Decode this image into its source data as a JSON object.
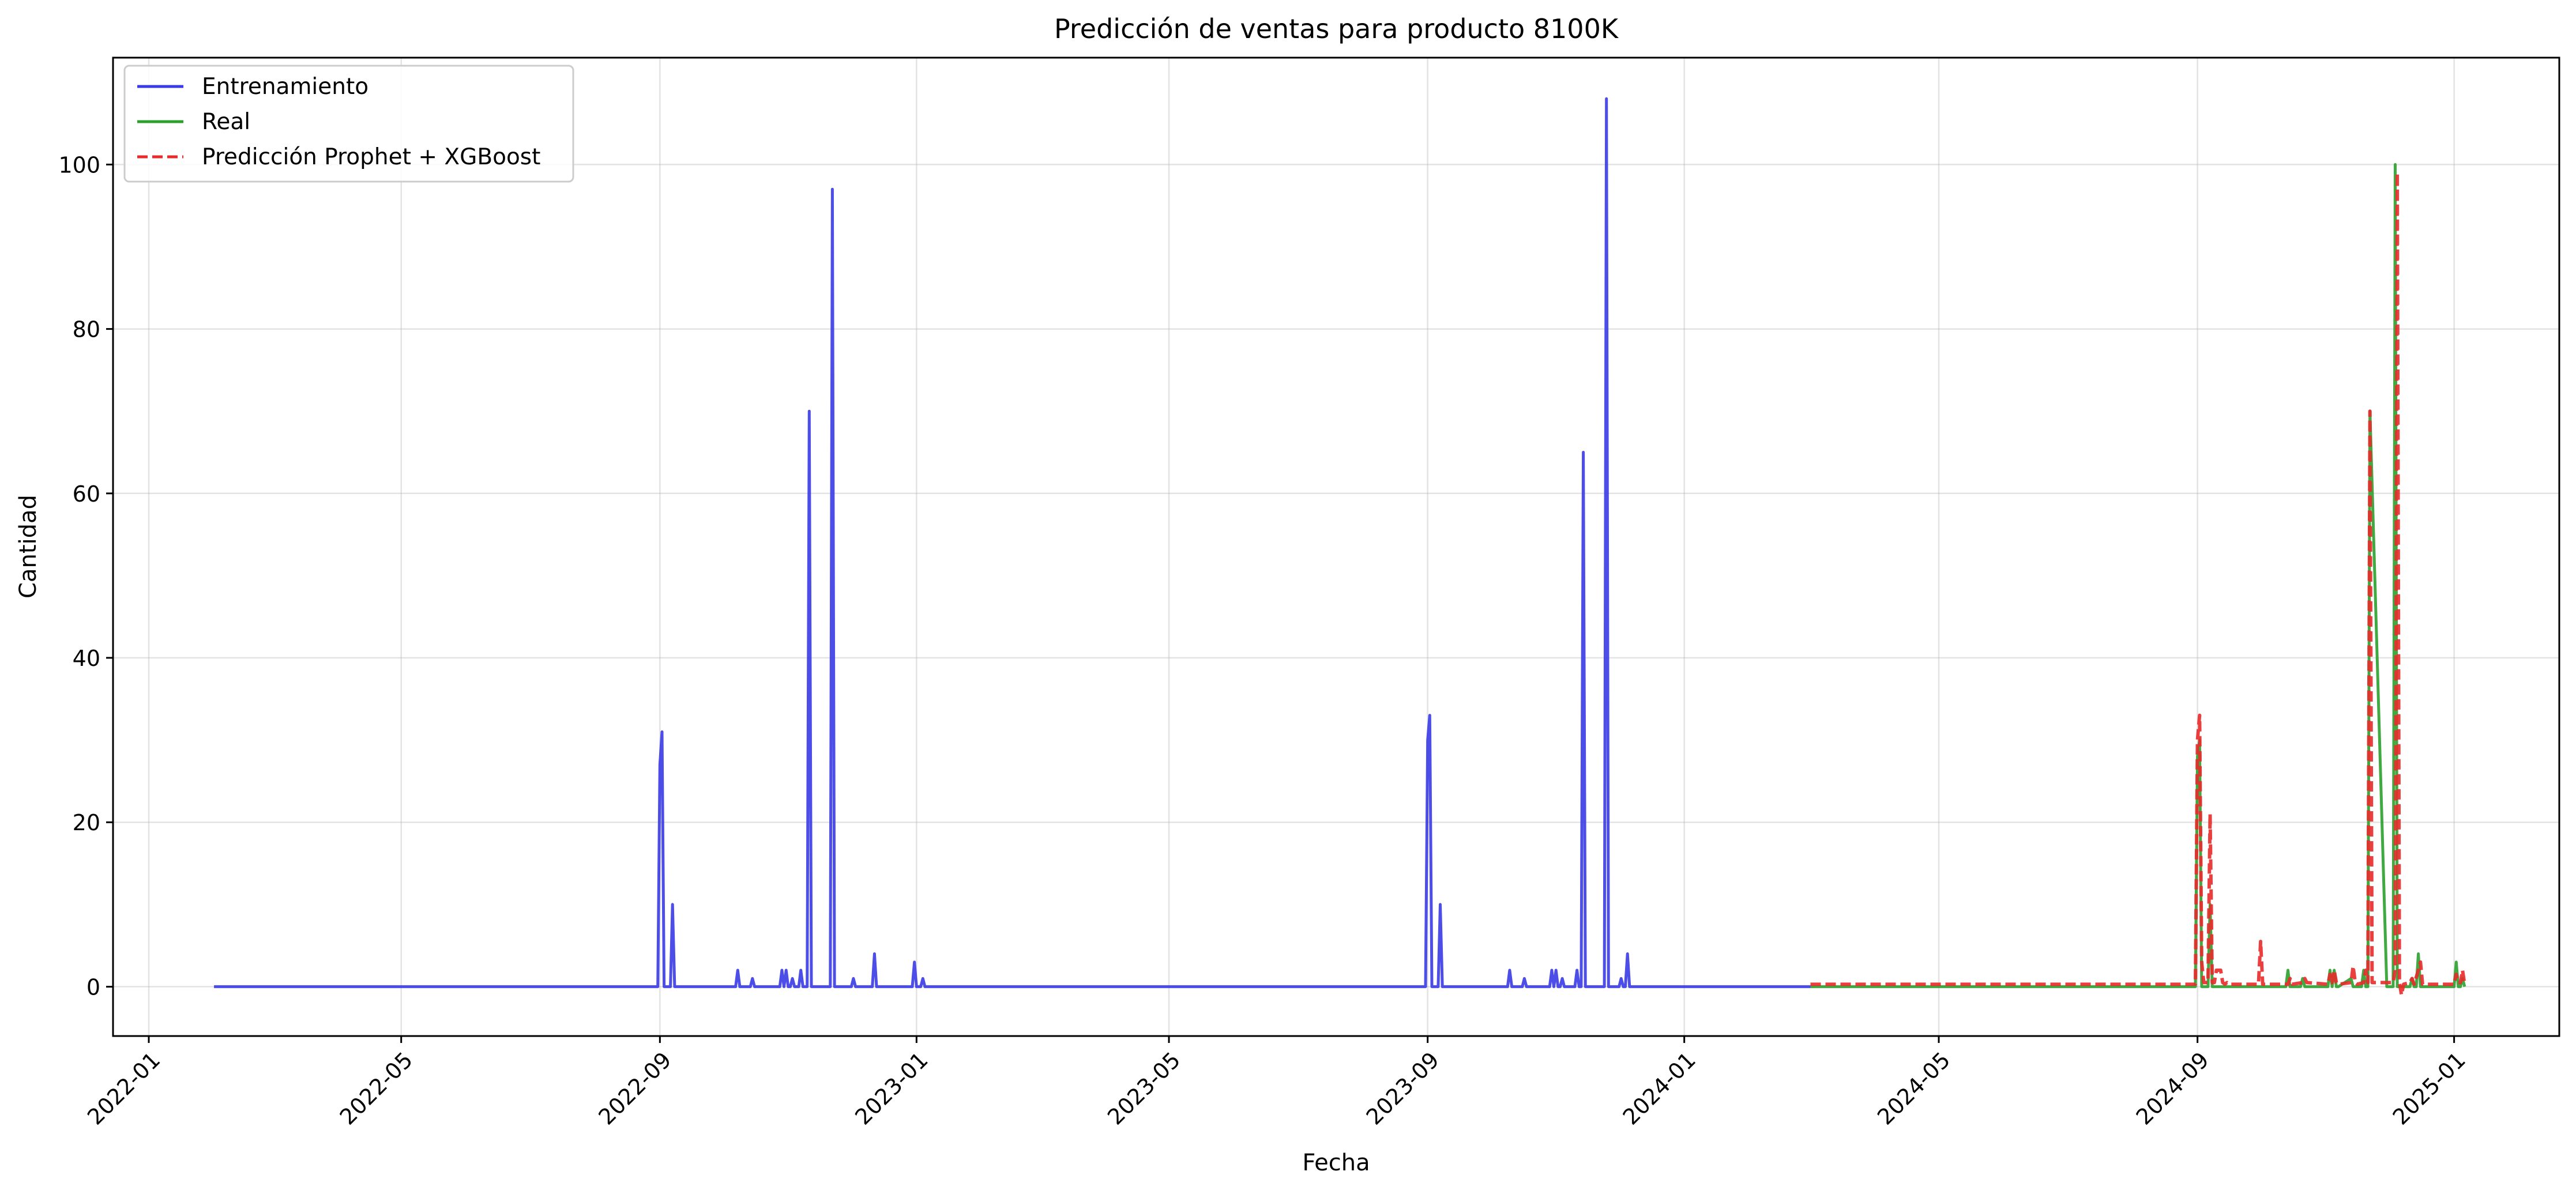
{
  "chart_data": {
    "type": "line",
    "title": "Predicción de ventas para producto 8100K",
    "xlabel": "Fecha",
    "ylabel": "Cantidad",
    "xlim": [
      "2021-12-15",
      "2025-02-20"
    ],
    "ylim": [
      -6,
      113
    ],
    "x_ticks": [
      "2022-01",
      "2022-05",
      "2022-09",
      "2023-01",
      "2023-05",
      "2023-09",
      "2024-01",
      "2024-05",
      "2024-09",
      "2025-01"
    ],
    "y_ticks": [
      0,
      20,
      40,
      60,
      80,
      100
    ],
    "grid": true,
    "legend_position": "top-left",
    "series": [
      {
        "name": "Entrenamiento",
        "color": "#3a3ae6",
        "dash": "solid",
        "x": [
          "2022-02-01",
          "2022-08-31",
          "2022-09-01",
          "2022-09-02",
          "2022-09-03",
          "2022-09-05",
          "2022-09-06",
          "2022-09-07",
          "2022-09-08",
          "2022-09-09",
          "2022-09-10",
          "2022-09-11",
          "2022-10-07",
          "2022-10-08",
          "2022-10-09",
          "2022-10-14",
          "2022-10-15",
          "2022-10-16",
          "2022-10-28",
          "2022-10-29",
          "2022-10-30",
          "2022-10-31",
          "2022-11-01",
          "2022-11-02",
          "2022-11-03",
          "2022-11-04",
          "2022-11-06",
          "2022-11-07",
          "2022-11-08",
          "2022-11-09",
          "2022-11-10",
          "2022-11-11",
          "2022-11-12",
          "2022-11-20",
          "2022-11-21",
          "2022-11-22",
          "2022-11-23",
          "2022-12-01",
          "2022-12-02",
          "2022-12-03",
          "2022-12-11",
          "2022-12-12",
          "2022-12-13",
          "2022-12-30",
          "2022-12-31",
          "2023-01-01",
          "2023-01-03",
          "2023-01-04",
          "2023-01-05",
          "2023-08-31",
          "2023-09-01",
          "2023-09-02",
          "2023-09-03",
          "2023-09-05",
          "2023-09-06",
          "2023-09-07",
          "2023-09-08",
          "2023-09-09",
          "2023-09-10",
          "2023-09-11",
          "2023-10-09",
          "2023-10-10",
          "2023-10-11",
          "2023-10-16",
          "2023-10-17",
          "2023-10-18",
          "2023-10-29",
          "2023-10-30",
          "2023-10-31",
          "2023-11-01",
          "2023-11-02",
          "2023-11-03",
          "2023-11-04",
          "2023-11-05",
          "2023-11-06",
          "2023-11-10",
          "2023-11-11",
          "2023-11-12",
          "2023-11-13",
          "2023-11-14",
          "2023-11-15",
          "2023-11-23",
          "2023-11-24",
          "2023-11-25",
          "2023-11-26",
          "2023-11-27",
          "2023-11-28",
          "2023-12-01",
          "2023-12-02",
          "2023-12-03",
          "2023-12-04",
          "2023-12-05",
          "2023-12-06",
          "2024-03-01"
        ],
        "y": [
          0,
          0,
          27,
          31,
          0,
          0,
          0,
          10,
          0,
          0,
          0,
          0,
          0,
          2,
          0,
          0,
          1,
          0,
          0,
          2,
          0,
          2,
          0,
          0,
          1,
          0,
          0,
          2,
          0,
          0,
          0,
          70,
          0,
          0,
          0,
          97,
          0,
          0,
          1,
          0,
          0,
          4,
          0,
          0,
          3,
          0,
          0,
          1,
          0,
          0,
          30,
          33,
          0,
          0,
          0,
          10,
          0,
          0,
          0,
          0,
          0,
          2,
          0,
          0,
          1,
          0,
          0,
          2,
          0,
          2,
          0,
          0,
          1,
          0,
          0,
          0,
          2,
          0,
          0,
          65,
          0,
          0,
          0,
          108,
          0,
          0,
          0,
          0,
          1,
          0,
          0,
          4,
          0,
          0
        ]
      },
      {
        "name": "Real",
        "color": "#2ca02c",
        "dash": "solid",
        "x": [
          "2024-03-01",
          "2024-08-31",
          "2024-09-01",
          "2024-09-02",
          "2024-09-03",
          "2024-09-05",
          "2024-09-06",
          "2024-09-07",
          "2024-09-08",
          "2024-09-09",
          "2024-09-10",
          "2024-10-13",
          "2024-10-14",
          "2024-10-15",
          "2024-10-20",
          "2024-10-21",
          "2024-10-22",
          "2024-11-02",
          "2024-11-03",
          "2024-11-04",
          "2024-11-05",
          "2024-11-06",
          "2024-11-07",
          "2024-11-13",
          "2024-11-14",
          "2024-11-15",
          "2024-11-18",
          "2024-11-19",
          "2024-11-20",
          "2024-11-21",
          "2024-11-22",
          "2024-11-30",
          "2024-12-01",
          "2024-12-02",
          "2024-12-03",
          "2024-12-04",
          "2024-12-05",
          "2024-12-06",
          "2024-12-10",
          "2024-12-11",
          "2024-12-12",
          "2024-12-13",
          "2024-12-14",
          "2024-12-15",
          "2024-12-16",
          "2025-01-01",
          "2025-01-02",
          "2025-01-03",
          "2025-01-04",
          "2025-01-05",
          "2025-01-06"
        ],
        "y": [
          0,
          0,
          28,
          30,
          0,
          0,
          0,
          10,
          0,
          0,
          0,
          0,
          2,
          0,
          0,
          1,
          0,
          0,
          2,
          0,
          2,
          0,
          0,
          1,
          0,
          0,
          0,
          2,
          0,
          0,
          70,
          0,
          0,
          0,
          0,
          100,
          0,
          0,
          0,
          0,
          1,
          0,
          0,
          4,
          0,
          0,
          3,
          0,
          0,
          1,
          0
        ]
      },
      {
        "name": "Predicción Prophet + XGBoost",
        "color": "#e82a2a",
        "dash": "dashed",
        "x": [
          "2024-03-01",
          "2024-08-31",
          "2024-09-01",
          "2024-09-02",
          "2024-09-03",
          "2024-09-04",
          "2024-09-05",
          "2024-09-06",
          "2024-09-07",
          "2024-09-08",
          "2024-09-09",
          "2024-09-10",
          "2024-09-11",
          "2024-09-12",
          "2024-09-13",
          "2024-09-14",
          "2024-09-15",
          "2024-09-16",
          "2024-09-30",
          "2024-10-01",
          "2024-10-02",
          "2024-10-14",
          "2024-10-15",
          "2024-10-16",
          "2024-10-21",
          "2024-10-22",
          "2024-10-23",
          "2024-11-02",
          "2024-11-03",
          "2024-11-04",
          "2024-11-05",
          "2024-11-06",
          "2024-11-07",
          "2024-11-13",
          "2024-11-14",
          "2024-11-15",
          "2024-11-16",
          "2024-11-19",
          "2024-11-20",
          "2024-11-21",
          "2024-11-22",
          "2024-11-23",
          "2024-12-03",
          "2024-12-04",
          "2024-12-05",
          "2024-12-06",
          "2024-12-07",
          "2024-12-08",
          "2024-12-11",
          "2024-12-12",
          "2024-12-13",
          "2024-12-15",
          "2024-12-16",
          "2024-12-17",
          "2025-01-01",
          "2025-01-02",
          "2025-01-03",
          "2025-01-04",
          "2025-01-05",
          "2025-01-06"
        ],
        "y": [
          0.3,
          0.3,
          30,
          33,
          3,
          0.5,
          0.5,
          0.5,
          21,
          0.5,
          0.5,
          2,
          2,
          2,
          0.5,
          0.3,
          0.5,
          0.3,
          0.3,
          5.5,
          0.3,
          0.3,
          1,
          0.3,
          0.5,
          1,
          0.5,
          0.3,
          1.5,
          0.5,
          2,
          0.5,
          0.3,
          0.5,
          2.5,
          0.5,
          0.3,
          0.5,
          2,
          0.5,
          70,
          0.5,
          0.5,
          2,
          99,
          0.5,
          -1,
          0.3,
          0.5,
          1,
          0.3,
          2,
          3,
          0.3,
          0.3,
          1.5,
          0.5,
          0.5,
          2,
          0.3
        ]
      }
    ]
  }
}
